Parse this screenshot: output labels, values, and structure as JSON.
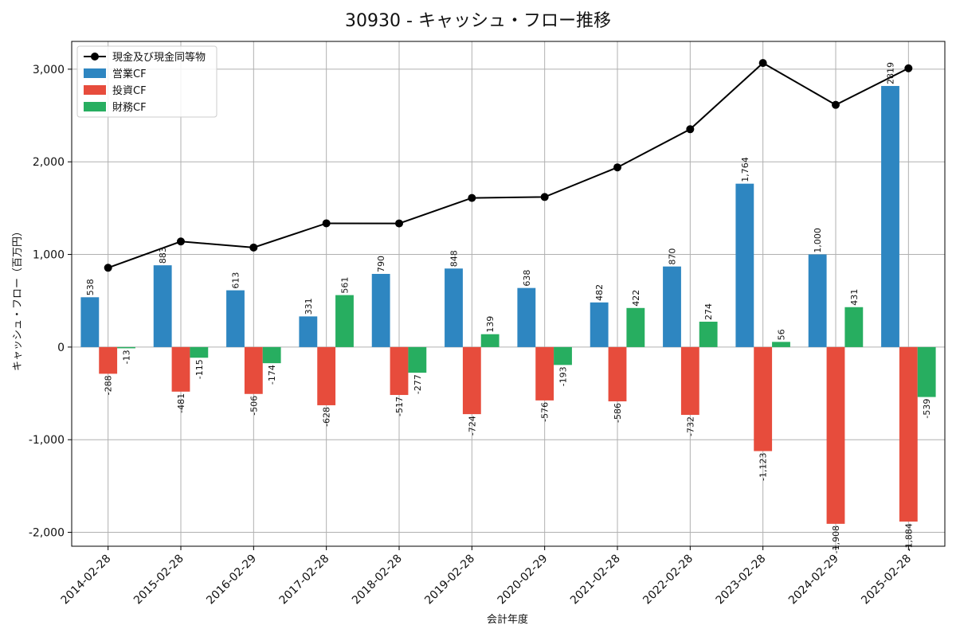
{
  "chart_data": {
    "type": "bar",
    "title": "30930 - キャッシュ・フロー推移",
    "xlabel": "会計年度",
    "ylabel": "キャッシュ・フロー（百万円）",
    "ylim": [
      -2150,
      3300
    ],
    "yticks": [
      -2000,
      -1000,
      0,
      1000,
      2000,
      3000
    ],
    "ytick_labels": [
      "-2,000",
      "-1,000",
      "0",
      "1,000",
      "2,000",
      "3,000"
    ],
    "grid": true,
    "legend_position": "top-left",
    "categories": [
      "2014-02-28",
      "2015-02-28",
      "2016-02-29",
      "2017-02-28",
      "2018-02-28",
      "2019-02-28",
      "2020-02-29",
      "2021-02-28",
      "2022-02-28",
      "2023-02-28",
      "2024-02-29",
      "2025-02-28"
    ],
    "series": [
      {
        "name": "営業CF",
        "kind": "bar",
        "color": "#2e86c1",
        "values": [
          538,
          883,
          613,
          331,
          790,
          848,
          638,
          482,
          870,
          1764,
          1000,
          2819
        ],
        "labels": [
          "538",
          "883",
          "613",
          "331",
          "790",
          "848",
          "638",
          "482",
          "870",
          "1,764",
          "1,000",
          "2819"
        ]
      },
      {
        "name": "投資CF",
        "kind": "bar",
        "color": "#e74c3c",
        "values": [
          -288,
          -481,
          -506,
          -628,
          -517,
          -724,
          -576,
          -586,
          -732,
          -1123,
          -1908,
          -1884
        ],
        "labels": [
          "-288",
          "-481",
          "-506",
          "-628",
          "-517",
          "-724",
          "-576",
          "-586",
          "-732",
          "-1,123",
          "-1,908",
          "-1,884"
        ]
      },
      {
        "name": "財務CF",
        "kind": "bar",
        "color": "#27ae60",
        "values": [
          -13,
          -115,
          -174,
          561,
          -277,
          139,
          -193,
          422,
          274,
          56,
          431,
          -539
        ],
        "labels": [
          "-13",
          "-115",
          "-174",
          "561",
          "-277",
          "139",
          "-193",
          "422",
          "274",
          "56",
          "431",
          "-539"
        ]
      },
      {
        "name": "現金及び現金同等物",
        "kind": "line",
        "color": "#000000",
        "values": [
          856,
          1140,
          1075,
          1336,
          1335,
          1610,
          1620,
          1940,
          2352,
          3067,
          2615,
          3010
        ]
      }
    ]
  }
}
